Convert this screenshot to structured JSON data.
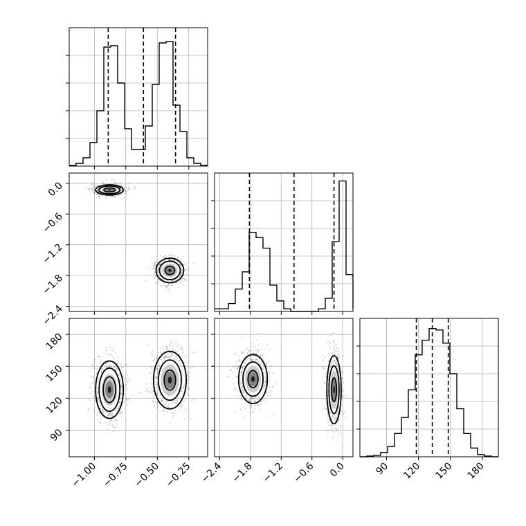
{
  "chart_data": {
    "type": "corner",
    "parameters": [
      {
        "range": [
          -1.2,
          -0.1
        ],
        "ticks": [
          -1.0,
          -0.75,
          -0.5,
          -0.25
        ],
        "tick_labels": [
          "−1.00",
          "−0.75",
          "−0.50",
          "−0.25"
        ]
      },
      {
        "range": [
          -2.5,
          0.2
        ],
        "ticks": [
          -2.4,
          -1.8,
          -1.2,
          -0.6,
          0.0
        ],
        "tick_labels": [
          "−2.4",
          "−1.8",
          "−1.2",
          "−0.6",
          "0.0"
        ]
      },
      {
        "range": [
          65,
          195
        ],
        "ticks": [
          90,
          120,
          150,
          180
        ],
        "tick_labels": [
          "90",
          "120",
          "150",
          "180"
        ]
      }
    ],
    "histograms": [
      {
        "param": 0,
        "bin_edges": [
          -1.2,
          -1.145,
          -1.09,
          -1.035,
          -0.98,
          -0.925,
          -0.87,
          -0.815,
          -0.76,
          -0.705,
          -0.65,
          -0.595,
          -0.54,
          -0.485,
          -0.43,
          -0.375,
          -0.32,
          -0.265,
          -0.21,
          -0.155,
          -0.1
        ],
        "counts": [
          0.5,
          2,
          6,
          17,
          40,
          86,
          87,
          60,
          27,
          12,
          12,
          29,
          59,
          89,
          90,
          44,
          25,
          6,
          2,
          0.5
        ],
        "ymax": 100,
        "quantiles": [
          -0.89,
          -0.61,
          -0.355
        ]
      },
      {
        "param": 1,
        "bin_edges": [
          -2.5,
          -2.365,
          -2.23,
          -2.095,
          -1.96,
          -1.825,
          -1.69,
          -1.555,
          -1.42,
          -1.285,
          -1.15,
          -1.015,
          -0.88,
          -0.745,
          -0.61,
          -0.475,
          -0.34,
          -0.205,
          -0.07,
          0.065,
          0.2
        ],
        "counts": [
          2,
          2,
          6,
          17,
          30,
          60,
          56,
          48,
          20,
          8,
          2,
          0,
          0,
          0,
          0,
          2,
          10,
          53,
          99,
          28,
          2
        ],
        "ymax": 105,
        "quantiles": [
          -1.82,
          -0.95,
          -0.17
        ]
      },
      {
        "param": 2,
        "bin_edges": [
          65,
          71.5,
          78,
          84.5,
          91,
          97.5,
          104,
          110.5,
          117,
          123.5,
          130,
          136.5,
          143,
          149.5,
          156,
          162.5,
          169,
          175.5,
          182,
          188.5,
          195
        ],
        "counts": [
          0,
          0.5,
          1,
          3,
          7,
          16,
          27,
          46,
          70,
          80,
          88,
          87,
          78,
          57,
          33,
          16,
          6,
          1.5,
          0.5,
          0
        ],
        "ymax": 95,
        "quantiles": [
          118,
          133,
          148
        ]
      }
    ],
    "joint": [
      {
        "x_param": 0,
        "y_param": 1,
        "modes": [
          {
            "cx": -0.88,
            "cy": -0.13,
            "rx": 0.11,
            "ry": 0.1,
            "levels": [
              0.4,
              0.75,
              1.0
            ]
          },
          {
            "cx": -0.4,
            "cy": -1.7,
            "rx": 0.11,
            "ry": 0.24,
            "levels": [
              0.35,
              0.75,
              1.0
            ]
          }
        ]
      },
      {
        "x_param": 0,
        "y_param": 2,
        "modes": [
          {
            "cx": -0.88,
            "cy": 128,
            "rx": 0.11,
            "ry": 27,
            "levels": [
              0.45,
              0.75,
              1.0
            ]
          },
          {
            "cx": -0.4,
            "cy": 137,
            "rx": 0.13,
            "ry": 27,
            "levels": [
              0.35,
              0.7,
              1.0
            ]
          }
        ]
      },
      {
        "x_param": 1,
        "y_param": 2,
        "modes": [
          {
            "cx": -1.75,
            "cy": 138,
            "rx": 0.28,
            "ry": 23,
            "levels": [
              0.35,
              0.7,
              1.0
            ]
          },
          {
            "cx": -0.17,
            "cy": 128,
            "rx": 0.14,
            "ry": 32,
            "levels": [
              0.35,
              0.7,
              1.0
            ]
          }
        ]
      }
    ],
    "grid": true,
    "xlabel": "",
    "ylabel": ""
  }
}
